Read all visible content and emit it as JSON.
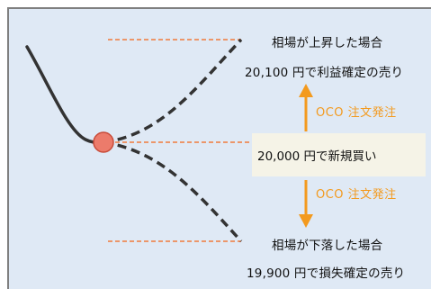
{
  "labels": {
    "rise_title": "相場が上昇した場合",
    "rise_detail": "20,100 円で利益確定の売り",
    "oco_up": "OCO 注文発注",
    "entry": "20,000 円で新規買い",
    "oco_down": "OCO 注文発注",
    "fall_title": "相場が下落した場合",
    "fall_detail": "19,900 円で損失確定の売り"
  },
  "colors": {
    "background": "#dfe9f5",
    "accent_orange": "#f39a1e",
    "guide_line": "#f07a3c",
    "curve": "#333333",
    "entry_marker": "#ec7b6b",
    "entry_box": "#f5f3e7"
  },
  "icons": [
    "arrow-up-icon",
    "arrow-down-icon"
  ]
}
